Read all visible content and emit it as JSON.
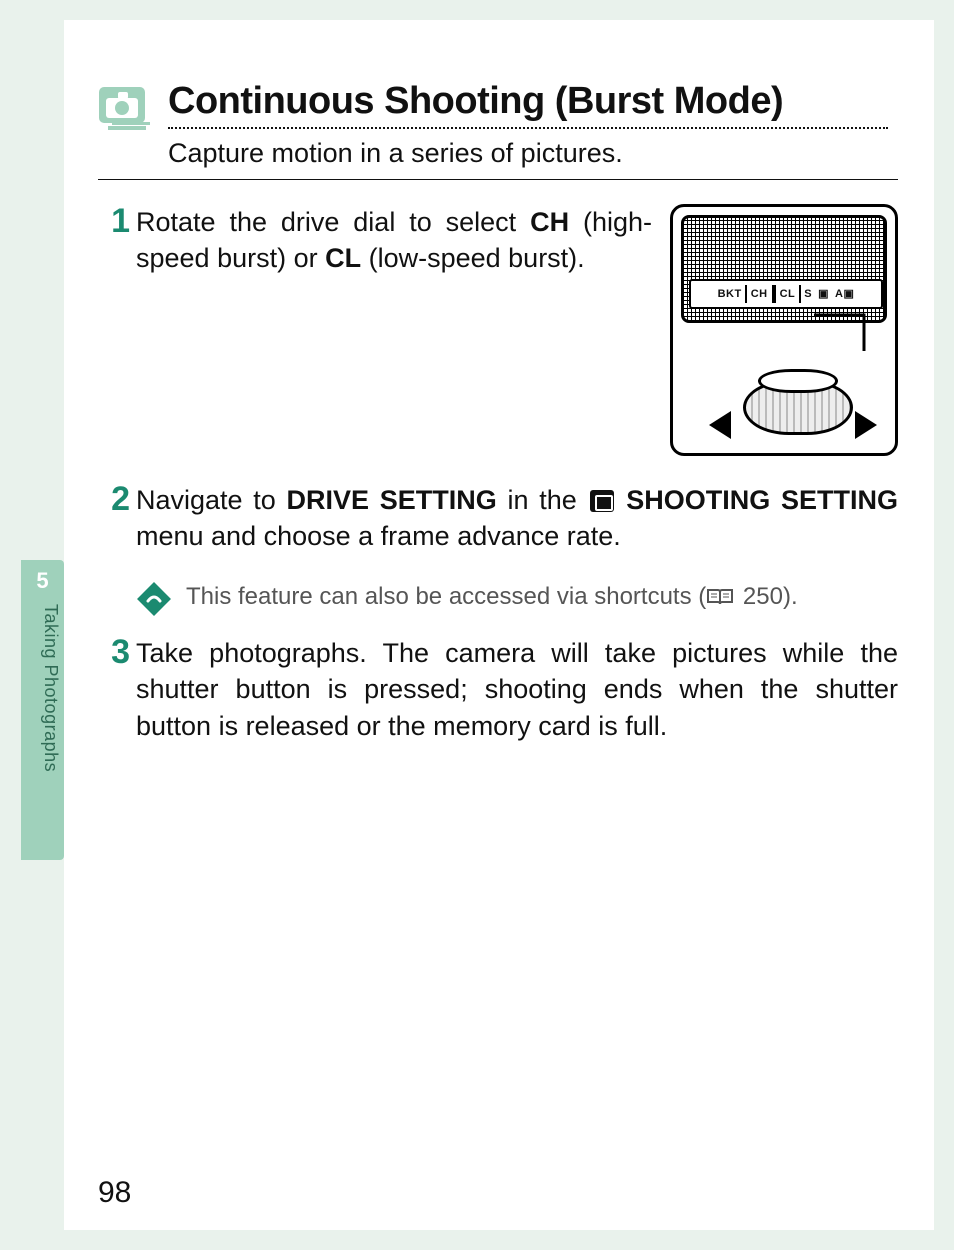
{
  "colors": {
    "page_bg": "#e9f2ec",
    "tab_bg": "#9fd1bb",
    "tab_text": "#2f6b55",
    "accent": "#1b8a70",
    "ink": "#111111",
    "note_text": "#555555"
  },
  "side_tab": {
    "chapter_number": "5",
    "label": "Taking Photographs"
  },
  "page_number": "98",
  "header": {
    "icon_name": "burst-camera-icon",
    "title": "Continuous Shooting (Burst Mode)",
    "subtitle": "Capture motion in a series of pictures."
  },
  "figure": {
    "strip_labels": [
      "BKT",
      "CH",
      "CL",
      "S",
      "▣",
      "A▣"
    ],
    "boxed_indices": [
      1,
      2
    ]
  },
  "steps": [
    {
      "n": "1",
      "text_parts": [
        {
          "t": "Rotate the drive dial to select "
        },
        {
          "t": "CH",
          "b": true
        },
        {
          "t": " (high-speed burst) or "
        },
        {
          "t": "CL",
          "b": true
        },
        {
          "t": " (low-speed burst)."
        }
      ],
      "has_figure": true
    },
    {
      "n": "2",
      "text_parts": [
        {
          "t": "Navigate to "
        },
        {
          "t": "DRIVE SETTING",
          "b": true
        },
        {
          "t": " in the "
        },
        {
          "icon": "camera-menu-icon"
        },
        {
          "t": " "
        },
        {
          "t": "SHOOTING SETTING",
          "b": true
        },
        {
          "t": " menu and choose a frame advance rate."
        }
      ],
      "note": {
        "icon_name": "tip-diamond-icon",
        "parts": [
          {
            "t": "This feature can also be accessed via shortcuts ("
          },
          {
            "icon": "manual-page-icon"
          },
          {
            "t": " 250)."
          }
        ]
      }
    },
    {
      "n": "3",
      "text_parts": [
        {
          "t": "Take photographs. The camera will take pictures while the shutter button is pressed; shooting ends when the shutter button is released or the memory card is full."
        }
      ]
    }
  ]
}
